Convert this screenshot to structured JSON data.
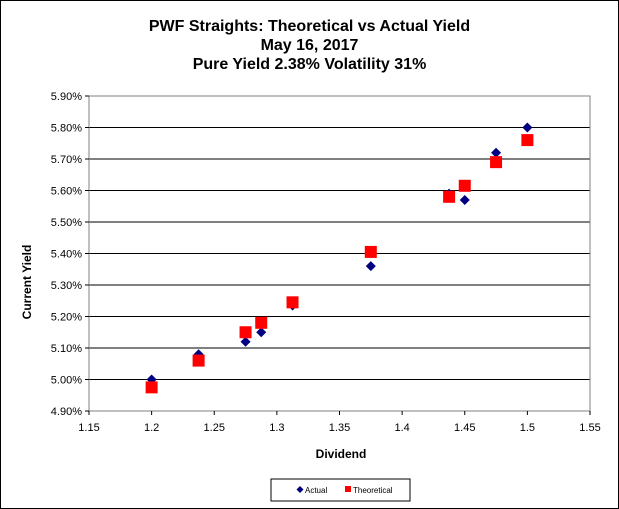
{
  "chart_data": {
    "type": "scatter",
    "title_lines": [
      "PWF Straights: Theoretical vs Actual Yield",
      "May 16, 2017",
      "Pure Yield 2.38% Volatility 31%"
    ],
    "xlabel": "Dividend",
    "ylabel": "Current Yield",
    "xlim": [
      1.15,
      1.55
    ],
    "ylim": [
      4.9,
      5.9
    ],
    "x_ticks": [
      "1.15",
      "1.2",
      "1.25",
      "1.3",
      "1.35",
      "1.4",
      "1.45",
      "1.5",
      "1.55"
    ],
    "y_ticks": [
      "4.90%",
      "5.00%",
      "5.10%",
      "5.20%",
      "5.30%",
      "5.40%",
      "5.50%",
      "5.60%",
      "5.70%",
      "5.80%",
      "5.90%"
    ],
    "grid": "horizontal",
    "legend": "bottom",
    "series": [
      {
        "name": "Actual",
        "marker": "diamond",
        "color": "#000080",
        "points": [
          [
            1.2,
            5.0
          ],
          [
            1.2375,
            5.08
          ],
          [
            1.275,
            5.12
          ],
          [
            1.2875,
            5.15
          ],
          [
            1.3125,
            5.235
          ],
          [
            1.375,
            5.36
          ],
          [
            1.4375,
            5.59
          ],
          [
            1.45,
            5.57
          ],
          [
            1.475,
            5.72
          ],
          [
            1.5,
            5.8
          ]
        ]
      },
      {
        "name": "Theoretical",
        "marker": "square",
        "color": "#ff0000",
        "points": [
          [
            1.2,
            4.975
          ],
          [
            1.2375,
            5.06
          ],
          [
            1.275,
            5.15
          ],
          [
            1.2875,
            5.18
          ],
          [
            1.3125,
            5.245
          ],
          [
            1.375,
            5.405
          ],
          [
            1.4375,
            5.58
          ],
          [
            1.45,
            5.615
          ],
          [
            1.475,
            5.69
          ],
          [
            1.5,
            5.76
          ]
        ]
      }
    ]
  }
}
